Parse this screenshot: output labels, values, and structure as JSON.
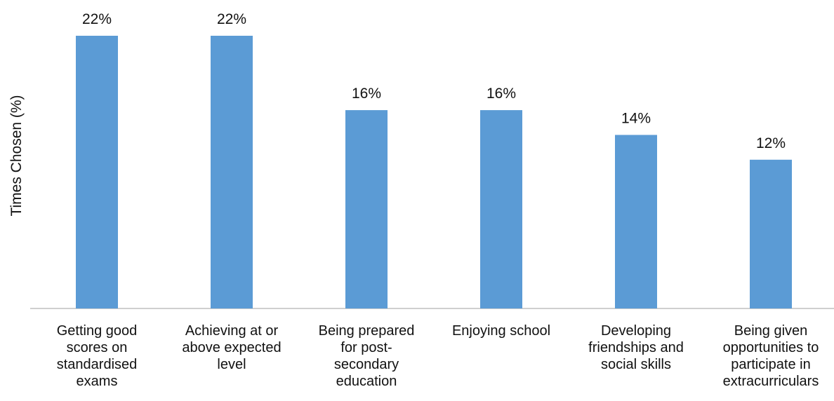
{
  "chart_data": {
    "type": "bar",
    "categories": [
      "Getting good scores on standardised exams",
      "Achieving at or above expected level",
      "Being prepared for post-secondary education",
      "Enjoying school",
      "Developing friendships and social skills",
      "Being given opportunities to participate in extracurriculars"
    ],
    "category_lines": [
      [
        "Getting good",
        "scores on",
        "standardised",
        "exams"
      ],
      [
        "Achieving at or",
        "above expected",
        "level"
      ],
      [
        "Being prepared",
        "for post-",
        "secondary",
        "education"
      ],
      [
        "Enjoying school"
      ],
      [
        "Developing",
        "friendships and",
        "social skills"
      ],
      [
        "Being given",
        "opportunities to",
        "participate in",
        "extracurriculars"
      ]
    ],
    "values": [
      22,
      22,
      16,
      16,
      14,
      12
    ],
    "data_labels": [
      "22%",
      "22%",
      "16%",
      "16%",
      "14%",
      "12%"
    ],
    "title": "",
    "xlabel": "",
    "ylabel": "Times Chosen (%)",
    "ylim": [
      0,
      22
    ],
    "grid": false,
    "legend": "none",
    "bar_color": "#5b9bd5",
    "axis_color": "#bfbfbf"
  }
}
